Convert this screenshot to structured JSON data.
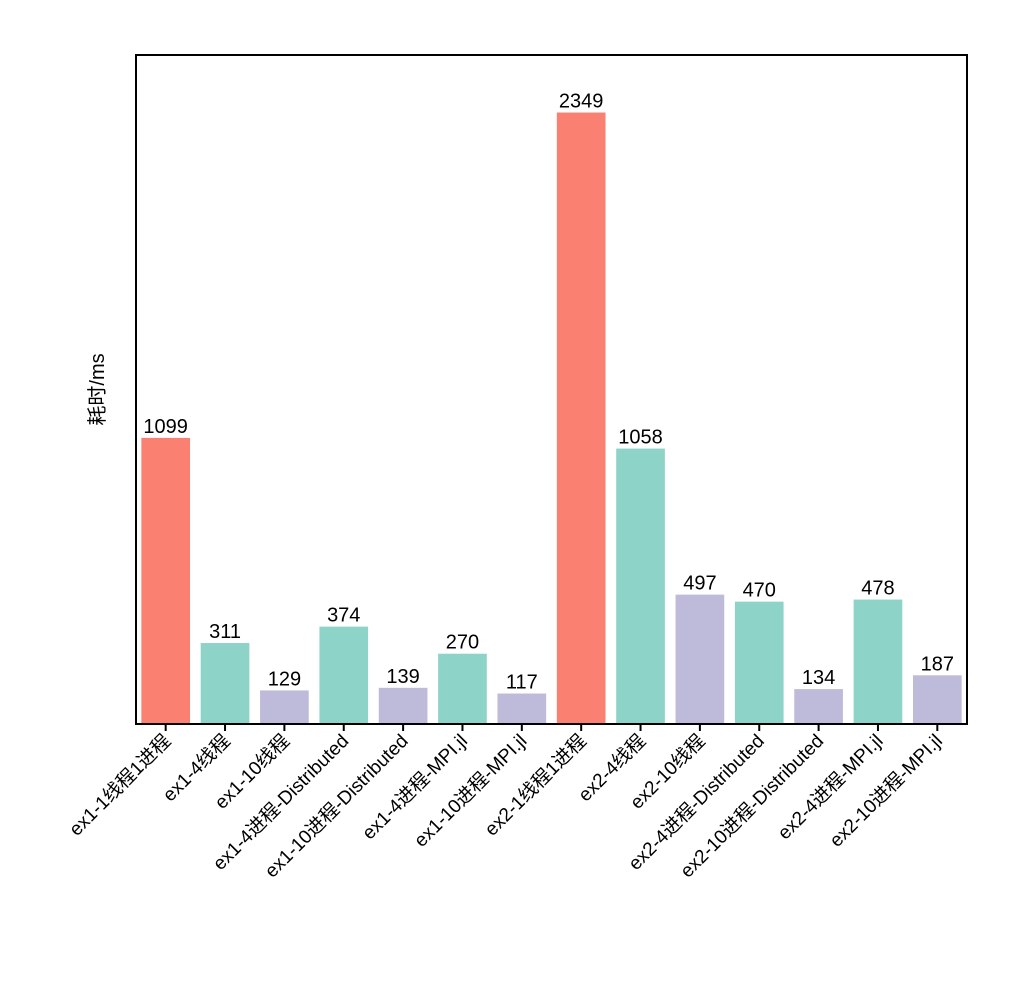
{
  "chart_data": {
    "type": "bar",
    "title": "",
    "xlabel": "",
    "ylabel": "耗时/ms",
    "ylim": [
      0,
      2570
    ],
    "grid": false,
    "categories": [
      "ex1-1线程1进程",
      "ex1-4线程",
      "ex1-10线程",
      "ex1-4进程-Distributed",
      "ex1-10进程-Distributed",
      "ex1-4进程-MPI.jl",
      "ex1-10进程-MPI.jl",
      "ex2-1线程1进程",
      "ex2-4线程",
      "ex2-10线程",
      "ex2-4进程-Distributed",
      "ex2-10进程-Distributed",
      "ex2-4进程-MPI.jl",
      "ex2-10进程-MPI.jl"
    ],
    "values": [
      1099,
      311,
      129,
      374,
      139,
      270,
      117,
      2349,
      1058,
      497,
      470,
      134,
      478,
      187
    ],
    "colors": [
      "#fa8072",
      "#8dd3c7",
      "#bebada",
      "#8dd3c7",
      "#bebada",
      "#8dd3c7",
      "#bebada",
      "#fa8072",
      "#8dd3c7",
      "#bebada",
      "#8dd3c7",
      "#bebada",
      "#8dd3c7",
      "#bebada"
    ]
  }
}
